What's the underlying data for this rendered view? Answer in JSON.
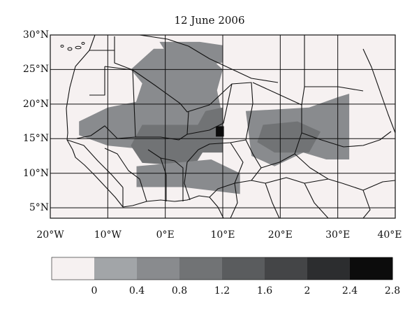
{
  "title": "12 June 2006",
  "colors": {
    "background": "#f6f1f1",
    "levels": [
      "#f6f1f1",
      "#a2a5a8",
      "#898b8e",
      "#717375",
      "#5a5c5e",
      "#444547",
      "#2c2d2f",
      "#0c0c0c"
    ],
    "border": "#111111"
  },
  "chart_data": {
    "type": "heatmap",
    "title": "12 June 2006",
    "xlim": [
      -20,
      40
    ],
    "ylim": [
      3.5,
      30
    ],
    "lat_ticks": [
      {
        "value": 30,
        "label": "30°N"
      },
      {
        "value": 25,
        "label": "25°N"
      },
      {
        "value": 20,
        "label": "20°N"
      },
      {
        "value": 15,
        "label": "15°N"
      },
      {
        "value": 10,
        "label": "10°N"
      },
      {
        "value": 5,
        "label": "5°N"
      }
    ],
    "lon_ticks": [
      {
        "value": -20,
        "label": "20°W"
      },
      {
        "value": -10,
        "label": "10°W"
      },
      {
        "value": 0,
        "label": "0°E"
      },
      {
        "value": 10,
        "label": "10°E"
      },
      {
        "value": 20,
        "label": "20°E"
      },
      {
        "value": 30,
        "label": "30°E"
      },
      {
        "value": 40,
        "label": "40°E"
      }
    ],
    "grid": true,
    "colorbar": {
      "min": 0,
      "max": 2.8,
      "bounds": [
        0,
        0.4,
        0.8,
        1.2,
        1.6,
        2,
        2.4,
        2.8
      ],
      "labels": [
        "0",
        "0.4",
        "0.8",
        "1.2",
        "1.6",
        "2",
        "2.4",
        "2.8"
      ]
    },
    "regions": [
      {
        "points": [
          [
            -2,
            28
          ],
          [
            6,
            28
          ],
          [
            10,
            25
          ],
          [
            9,
            22
          ],
          [
            10,
            18
          ],
          [
            9,
            15
          ],
          [
            5,
            13
          ],
          [
            1,
            12
          ],
          [
            -4,
            13
          ],
          [
            -6,
            18
          ],
          [
            -4,
            23
          ],
          [
            -6,
            25
          ]
        ],
        "value": 0.5
      },
      {
        "points": [
          [
            -15,
            17.5
          ],
          [
            -10,
            19.5
          ],
          [
            -4,
            20.5
          ],
          [
            0,
            18
          ],
          [
            2,
            16
          ],
          [
            1,
            14
          ],
          [
            -4,
            13.5
          ],
          [
            -10,
            14
          ],
          [
            -15,
            15.5
          ]
        ],
        "value": 0.7
      },
      {
        "points": [
          [
            -4,
            17
          ],
          [
            6,
            17
          ],
          [
            8,
            15
          ],
          [
            5,
            11
          ],
          [
            -4,
            11.5
          ],
          [
            -6,
            14
          ]
        ],
        "value": 0.9
      },
      {
        "points": [
          [
            7,
            19
          ],
          [
            10,
            19.5
          ],
          [
            10,
            13
          ],
          [
            6,
            13
          ],
          [
            5,
            16
          ]
        ],
        "value": 1.1
      },
      {
        "points": [
          [
            8.8,
            16.8
          ],
          [
            10.2,
            16.8
          ],
          [
            10.2,
            15.3
          ],
          [
            8.8,
            15.3
          ]
        ],
        "value": 2.7
      },
      {
        "points": [
          [
            14,
            19
          ],
          [
            25,
            19.5
          ],
          [
            30,
            21
          ],
          [
            32,
            21.5
          ],
          [
            32,
            18
          ],
          [
            32,
            12
          ],
          [
            28,
            12
          ],
          [
            24,
            13
          ],
          [
            19,
            11
          ],
          [
            15,
            12.5
          ]
        ],
        "value": 0.6
      },
      {
        "points": [
          [
            17,
            17
          ],
          [
            23,
            17.5
          ],
          [
            27,
            16
          ],
          [
            25,
            13
          ],
          [
            19,
            13
          ],
          [
            16,
            14.5
          ]
        ],
        "value": 1.0
      },
      {
        "points": [
          [
            -5,
            11
          ],
          [
            8,
            12
          ],
          [
            13,
            10
          ],
          [
            13,
            7
          ],
          [
            3,
            8
          ],
          [
            -5,
            8
          ]
        ],
        "value": 0.45
      },
      {
        "points": [
          [
            -1,
            29
          ],
          [
            6,
            29
          ],
          [
            10,
            28.5
          ],
          [
            10,
            26
          ],
          [
            2,
            25
          ]
        ],
        "value": 0.45
      }
    ]
  }
}
